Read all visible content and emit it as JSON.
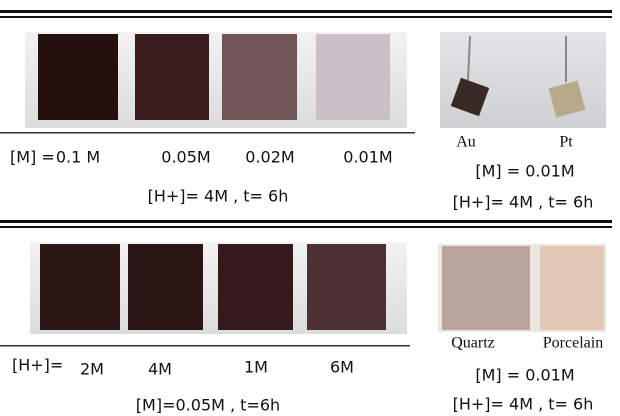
{
  "top": {
    "prefix": "[M] =",
    "samples": [
      "0.1 M",
      "0.05M",
      "0.02M",
      "0.01M"
    ],
    "conditions": "[H+]= 4M , t= 6h"
  },
  "top_right": {
    "labels": [
      "Au",
      "Pt"
    ],
    "concentration": "[M] = 0.01M",
    "conditions": "[H+]= 4M , t= 6h"
  },
  "bottom": {
    "prefix": "[H+]=",
    "samples": [
      "2M",
      "4M",
      "1M",
      "6M"
    ],
    "conditions": "[M]=0.05M , t=6h"
  },
  "bottom_right": {
    "labels": [
      "Quartz",
      "Porcelain"
    ],
    "concentration": "[M] = 0.01M",
    "conditions": "[H+]= 4M , t= 6h"
  }
}
